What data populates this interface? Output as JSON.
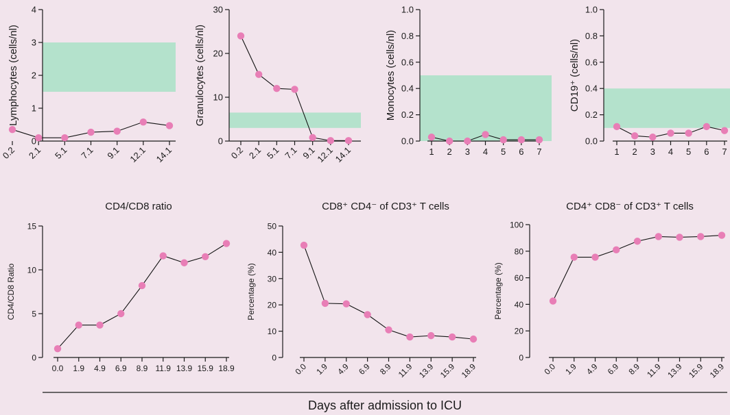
{
  "colors": {
    "background": "#f2e4ec",
    "marker": "#e87eb6",
    "reference_band": "#b4e2cc",
    "axis": "#1a1a1a"
  },
  "footer": {
    "xlabel": "Days after admission to ICU"
  },
  "chart_data": [
    {
      "type": "line",
      "title": "",
      "xlabel": "",
      "ylabel": "Lymphocytes (cells/nl)",
      "categories": [
        "0.2",
        "2.1",
        "5.1",
        "7.1",
        "9.1",
        "12.1",
        "14.1"
      ],
      "values": [
        0.35,
        0.1,
        0.1,
        0.27,
        0.3,
        0.58,
        0.47
      ],
      "ylim": [
        0,
        4
      ],
      "yticks": [
        "0",
        "1",
        "2",
        "3",
        "4"
      ],
      "reference_band": [
        1.5,
        3.0
      ],
      "tick_rotation": -45
    },
    {
      "type": "line",
      "title": "",
      "xlabel": "",
      "ylabel": "Granulocytes (cells/nl)",
      "categories": [
        "0.2",
        "2.1",
        "5.1",
        "7.1",
        "9.1",
        "12.1",
        "14.1"
      ],
      "values": [
        24,
        15.2,
        12,
        11.8,
        0.8,
        0.1,
        0.1
      ],
      "ylim": [
        0,
        30
      ],
      "yticks": [
        "0",
        "10",
        "20",
        "30"
      ],
      "reference_band": [
        3,
        6.5
      ],
      "tick_rotation": -45
    },
    {
      "type": "line",
      "title": "",
      "xlabel": "",
      "ylabel": "Monocytes (cells/nl)",
      "categories": [
        "1",
        "2",
        "3",
        "4",
        "5",
        "6",
        "7"
      ],
      "values": [
        0.03,
        0.0,
        0.0,
        0.05,
        0.01,
        0.01,
        0.01
      ],
      "ylim": [
        0,
        1.0
      ],
      "yticks": [
        "0.0",
        "0.2",
        "0.4",
        "0.6",
        "0.8",
        "1.0"
      ],
      "reference_band": [
        0.0,
        0.5
      ],
      "tick_rotation": 0
    },
    {
      "type": "line",
      "title": "",
      "xlabel": "",
      "ylabel": "CD19⁺ (cells/nl)",
      "categories": [
        "1",
        "2",
        "3",
        "4",
        "5",
        "6",
        "7"
      ],
      "values": [
        0.11,
        0.04,
        0.03,
        0.06,
        0.06,
        0.11,
        0.08
      ],
      "ylim": [
        0,
        1.0
      ],
      "yticks": [
        "0.0",
        "0.2",
        "0.4",
        "0.6",
        "0.8",
        "1.0"
      ],
      "reference_band": [
        0.1,
        0.4
      ],
      "tick_rotation": 0
    },
    {
      "type": "line",
      "title": "CD4/CD8 ratio",
      "xlabel": "",
      "ylabel": "CD4/CD8 Ratio",
      "categories": [
        "0.0",
        "1.9",
        "4.9",
        "6.9",
        "8.9",
        "11.9",
        "13.9",
        "15.9",
        "18.9"
      ],
      "values": [
        1.0,
        3.7,
        3.7,
        5.0,
        8.2,
        11.6,
        10.8,
        11.5,
        13.0
      ],
      "ylim": [
        0,
        15
      ],
      "yticks": [
        "0",
        "5",
        "10",
        "15"
      ],
      "tick_rotation": 0
    },
    {
      "type": "line",
      "title": "CD8⁺ CD4⁻ of CD3⁺ T cells",
      "xlabel": "",
      "ylabel": "Percentage (%)",
      "categories": [
        "0.0",
        "1.9",
        "4.9",
        "6.9",
        "8.9",
        "11.9",
        "13.9",
        "15.9",
        "18.9"
      ],
      "values": [
        42.7,
        20.6,
        20.4,
        16.3,
        10.5,
        7.8,
        8.3,
        7.8,
        7.0
      ],
      "ylim": [
        0,
        50
      ],
      "yticks": [
        "0",
        "10",
        "20",
        "30",
        "40",
        "50"
      ],
      "tick_rotation": -45
    },
    {
      "type": "line",
      "title": "CD4⁺ CD8⁻ of CD3⁺ T cells",
      "xlabel": "",
      "ylabel": "Percentage (%)",
      "categories": [
        "0.0",
        "1.9",
        "4.9",
        "6.9",
        "8.9",
        "11.9",
        "13.9",
        "15.9",
        "18.9"
      ],
      "values": [
        42.5,
        75.5,
        75.5,
        81.0,
        87.5,
        91.0,
        90.5,
        91.0,
        92.0
      ],
      "ylim": [
        0,
        100
      ],
      "yticks": [
        "0",
        "20",
        "40",
        "60",
        "80",
        "100"
      ],
      "tick_rotation": -45
    }
  ]
}
